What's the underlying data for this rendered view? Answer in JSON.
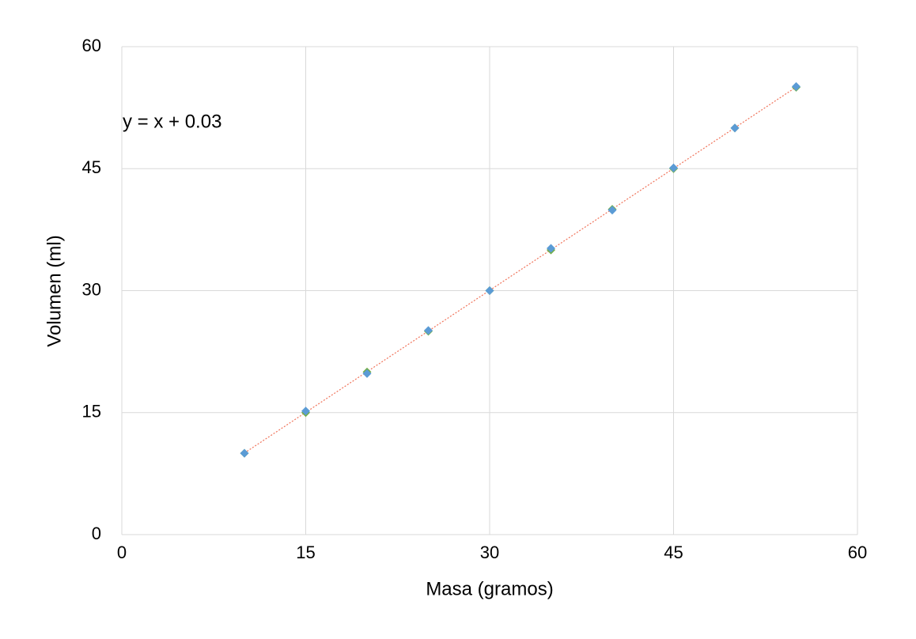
{
  "chart_data": {
    "type": "scatter",
    "annotation": "y = x + 0.03",
    "xlabel": "Masa (gramos)",
    "ylabel": "Volumen (ml)",
    "xlim": [
      0,
      60
    ],
    "xticks": [
      0,
      15,
      30,
      45,
      60
    ],
    "ylim": [
      0,
      60
    ],
    "yticks": [
      0,
      15,
      30,
      45,
      60
    ],
    "grid": true,
    "series": [
      {
        "color": "#70ad47",
        "x": [
          10,
          15,
          20,
          25,
          30,
          35,
          40,
          45,
          50,
          55
        ],
        "values": [
          10,
          15,
          20,
          25,
          30,
          35,
          40,
          45,
          50,
          55
        ]
      },
      {
        "color": "#5b9bd5",
        "x": [
          10,
          15,
          20,
          25,
          30,
          35,
          40,
          45,
          50,
          55
        ],
        "values": [
          10,
          15.2,
          19.8,
          25.1,
          30,
          35.2,
          39.9,
          45.1,
          50,
          55.1
        ]
      }
    ],
    "trendline": {
      "color": "#f0735a",
      "x": [
        10,
        55
      ],
      "values": [
        10.03,
        55.03
      ]
    }
  }
}
